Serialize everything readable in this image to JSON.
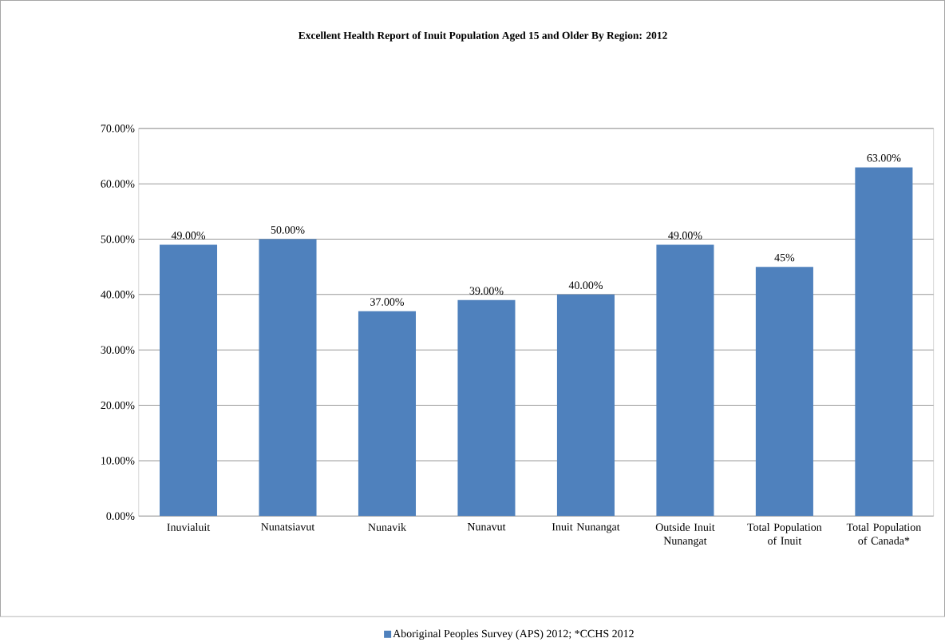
{
  "chart_data": {
    "type": "bar",
    "title": "Excellent Health Report of Inuit Population Aged 15 and Older By Region: 2012",
    "categories": [
      "Inuvialuit",
      "Nunatsiavut",
      "Nunavik",
      "Nunavut",
      "Inuit Nunangat",
      "Outside Inuit Nunangat",
      "Total Population of Inuit",
      "Total Population of Canada*"
    ],
    "series": [
      {
        "name": "Aboriginal Peoples Survey (APS) 2012; *CCHS 2012",
        "color": "#4f81bd",
        "values": [
          49,
          50,
          37,
          39,
          40,
          49,
          45,
          63
        ],
        "value_labels": [
          "49.00%",
          "50.00%",
          "37.00%",
          "39.00%",
          "40.00%",
          "49.00%",
          "45%",
          "63.00%"
        ]
      }
    ],
    "ylim": [
      0,
      70
    ],
    "yticks": [
      {
        "value": 0,
        "label": "0.00%"
      },
      {
        "value": 10,
        "label": "10.00%"
      },
      {
        "value": 20,
        "label": "20.00%"
      },
      {
        "value": 30,
        "label": "30.00%"
      },
      {
        "value": 40,
        "label": "40.00%"
      },
      {
        "value": 50,
        "label": "50.00%"
      },
      {
        "value": 60,
        "label": "60.00%"
      },
      {
        "value": 70,
        "label": "70.00%"
      }
    ],
    "grid": "y",
    "legend": "bottom"
  }
}
